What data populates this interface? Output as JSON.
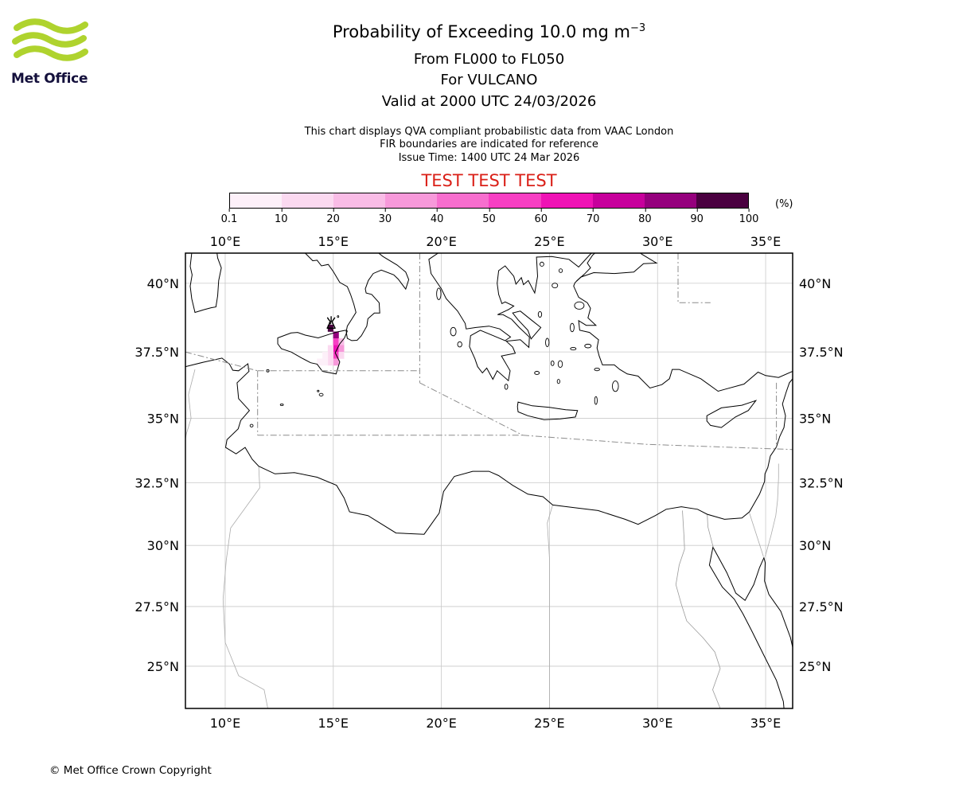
{
  "header": {
    "brand": "Met Office",
    "logo_green": "#afd32e",
    "logo_text_color": "#14103c",
    "title_main": "Probability of Exceeding 10.0 mg m",
    "title_sup": "−3",
    "line2": "From FL000 to FL050",
    "line3": "For VULCANO",
    "line4": "Valid at 2000 UTC 24/03/2026",
    "note1": "This chart displays QVA compliant probabilistic data from VAAC London",
    "note2": "FIR boundaries are indicated for reference",
    "note3": "Issue Time: 1400 UTC 24 Mar 2026",
    "test_text": "TEST TEST TEST",
    "test_color": "#da2018"
  },
  "colorbar": {
    "ticks": [
      "0.1",
      "10",
      "20",
      "30",
      "40",
      "50",
      "60",
      "70",
      "80",
      "90",
      "100"
    ],
    "unit_label": "(%)",
    "colors": [
      "#fdf0f9",
      "#fbd9f0",
      "#f9bce6",
      "#f799da",
      "#f76ece",
      "#f73fc3",
      "#ef12b5",
      "#c7009c",
      "#95007d",
      "#4a0040"
    ]
  },
  "chart_data": {
    "type": "heatmap",
    "title": "Probability of Exceeding 10.0 mg m-3",
    "flight_levels": "FL000 to FL050",
    "volcano": {
      "name": "VULCANO",
      "lon": 14.9,
      "lat": 38.55
    },
    "valid_time": "2000 UTC 24/03/2026",
    "issue_time": "1400 UTC 24 Mar 2026",
    "source": "VAAC London",
    "prob_thresholds_percent": [
      0.1,
      10,
      20,
      30,
      40,
      50,
      60,
      70,
      80,
      90,
      100
    ],
    "cell_size_deg": 0.25,
    "cells": [
      {
        "lon": 14.75,
        "lat": 38.25,
        "p": 97
      },
      {
        "lon": 15.0,
        "lat": 38.0,
        "p": 88
      },
      {
        "lon": 15.0,
        "lat": 37.75,
        "p": 58
      },
      {
        "lon": 15.25,
        "lat": 37.75,
        "p": 27
      },
      {
        "lon": 15.0,
        "lat": 37.5,
        "p": 66
      },
      {
        "lon": 15.25,
        "lat": 37.5,
        "p": 32
      },
      {
        "lon": 14.75,
        "lat": 37.5,
        "p": 13
      },
      {
        "lon": 15.0,
        "lat": 37.25,
        "p": 55
      },
      {
        "lon": 15.25,
        "lat": 37.25,
        "p": 12
      },
      {
        "lon": 14.75,
        "lat": 37.25,
        "p": 17
      },
      {
        "lon": 14.5,
        "lat": 37.25,
        "p": 6
      },
      {
        "lon": 15.0,
        "lat": 37.0,
        "p": 34
      },
      {
        "lon": 14.75,
        "lat": 37.0,
        "p": 12
      },
      {
        "lon": 14.5,
        "lat": 37.0,
        "p": 5
      },
      {
        "lon": 14.25,
        "lat": 37.0,
        "p": 2
      }
    ],
    "axes": {
      "lon_ticks": [
        10,
        15,
        20,
        25,
        30,
        35
      ],
      "lon_labels": [
        "10°E",
        "15°E",
        "20°E",
        "25°E",
        "30°E",
        "35°E"
      ],
      "lat_ticks": [
        40,
        37.5,
        35,
        32.5,
        30,
        27.5,
        25
      ],
      "lat_labels": [
        "40°N",
        "37.5°N",
        "35°N",
        "32.5°N",
        "30°N",
        "27.5°N",
        "25°N"
      ],
      "lon_range": [
        8.16,
        36.25
      ],
      "lat_range": [
        23.2,
        41.07
      ],
      "grid": true
    }
  },
  "footer": {
    "copyright": "© Met Office Crown Copyright"
  }
}
